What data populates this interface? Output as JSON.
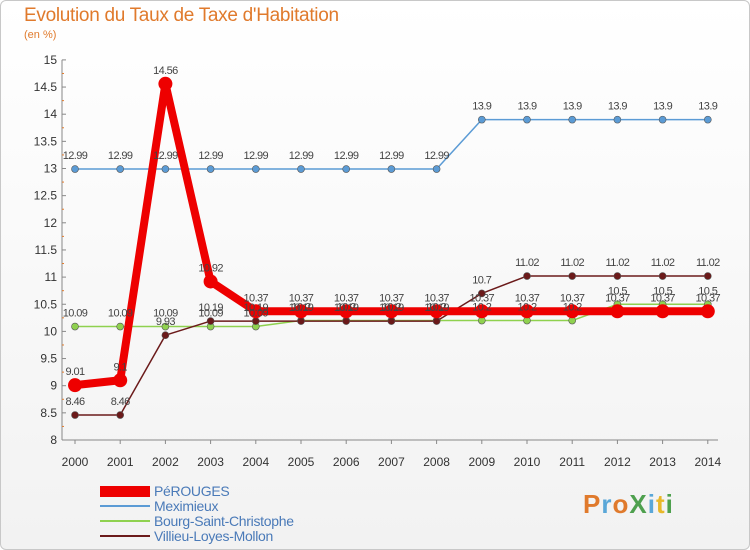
{
  "title": "Evolution du Taux de Taxe d'Habitation",
  "subtitle": "(en %)",
  "logo_text": "ProXiti",
  "chart_data": {
    "type": "line",
    "title": "Evolution du Taux de Taxe d'Habitation",
    "ylabel": "(en %)",
    "xlabel": "",
    "categories": [
      "2000",
      "2001",
      "2002",
      "2003",
      "2004",
      "2005",
      "2006",
      "2007",
      "2008",
      "2009",
      "2010",
      "2011",
      "2012",
      "2013",
      "2014"
    ],
    "ylim": [
      8,
      15
    ],
    "yticks": [
      "8",
      "8.5",
      "9",
      "9.5",
      "10",
      "10.5",
      "11",
      "11.5",
      "12",
      "12.5",
      "13",
      "13.5",
      "14",
      "14.5",
      "15"
    ],
    "grid": false,
    "legend_position": "bottom-left",
    "series": [
      {
        "name": "PéROUGES",
        "color": "#ee0000",
        "values": [
          9.01,
          9.1,
          14.56,
          10.92,
          10.37,
          10.37,
          10.37,
          10.37,
          10.37,
          10.37,
          10.37,
          10.37,
          10.37,
          10.37,
          10.37
        ],
        "labels": [
          "9.01",
          "9.1",
          "14.56",
          "10.92",
          "10.37",
          "10.37",
          "10.37",
          "10.37",
          "10.37",
          "10.37",
          "10.37",
          "10.37",
          "10.37",
          "10.37",
          "10.37"
        ]
      },
      {
        "name": "Meximieux",
        "color": "#5b9bd5",
        "values": [
          12.99,
          12.99,
          12.99,
          12.99,
          12.99,
          12.99,
          12.99,
          12.99,
          12.99,
          13.9,
          13.9,
          13.9,
          13.9,
          13.9,
          13.9
        ],
        "labels": [
          "12.99",
          "12.99",
          "12.99",
          "12.99",
          "12.99",
          "12.99",
          "12.99",
          "12.99",
          "12.99",
          "13.9",
          "13.9",
          "13.9",
          "13.9",
          "13.9",
          "13.9"
        ]
      },
      {
        "name": "Bourg-Saint-Christophe",
        "color": "#8fd14f",
        "values": [
          10.09,
          10.09,
          10.09,
          10.09,
          10.09,
          10.2,
          10.2,
          10.2,
          10.2,
          10.2,
          10.2,
          10.2,
          10.5,
          10.5,
          10.5
        ],
        "labels": [
          "10.09",
          "10.09",
          "10.09",
          "10.09",
          "10.09",
          "10.2",
          "10.2",
          "10.2",
          "10.2",
          "10.2",
          "10.2",
          "10.2",
          "10.5",
          "10.5",
          "10.5"
        ]
      },
      {
        "name": "Villieu-Loyes-Mollon",
        "color": "#6b1a1a",
        "values": [
          8.46,
          8.46,
          9.93,
          10.19,
          10.19,
          10.19,
          10.19,
          10.19,
          10.19,
          10.7,
          11.02,
          11.02,
          11.02,
          11.02,
          11.02
        ],
        "labels": [
          "8.46",
          "8.46",
          "9.93",
          "10.19",
          "10.19",
          "10.19",
          "10.19",
          "10.19",
          "10.19",
          "10.7",
          "11.02",
          "11.02",
          "11.02",
          "11.02",
          "11.02"
        ]
      }
    ]
  }
}
